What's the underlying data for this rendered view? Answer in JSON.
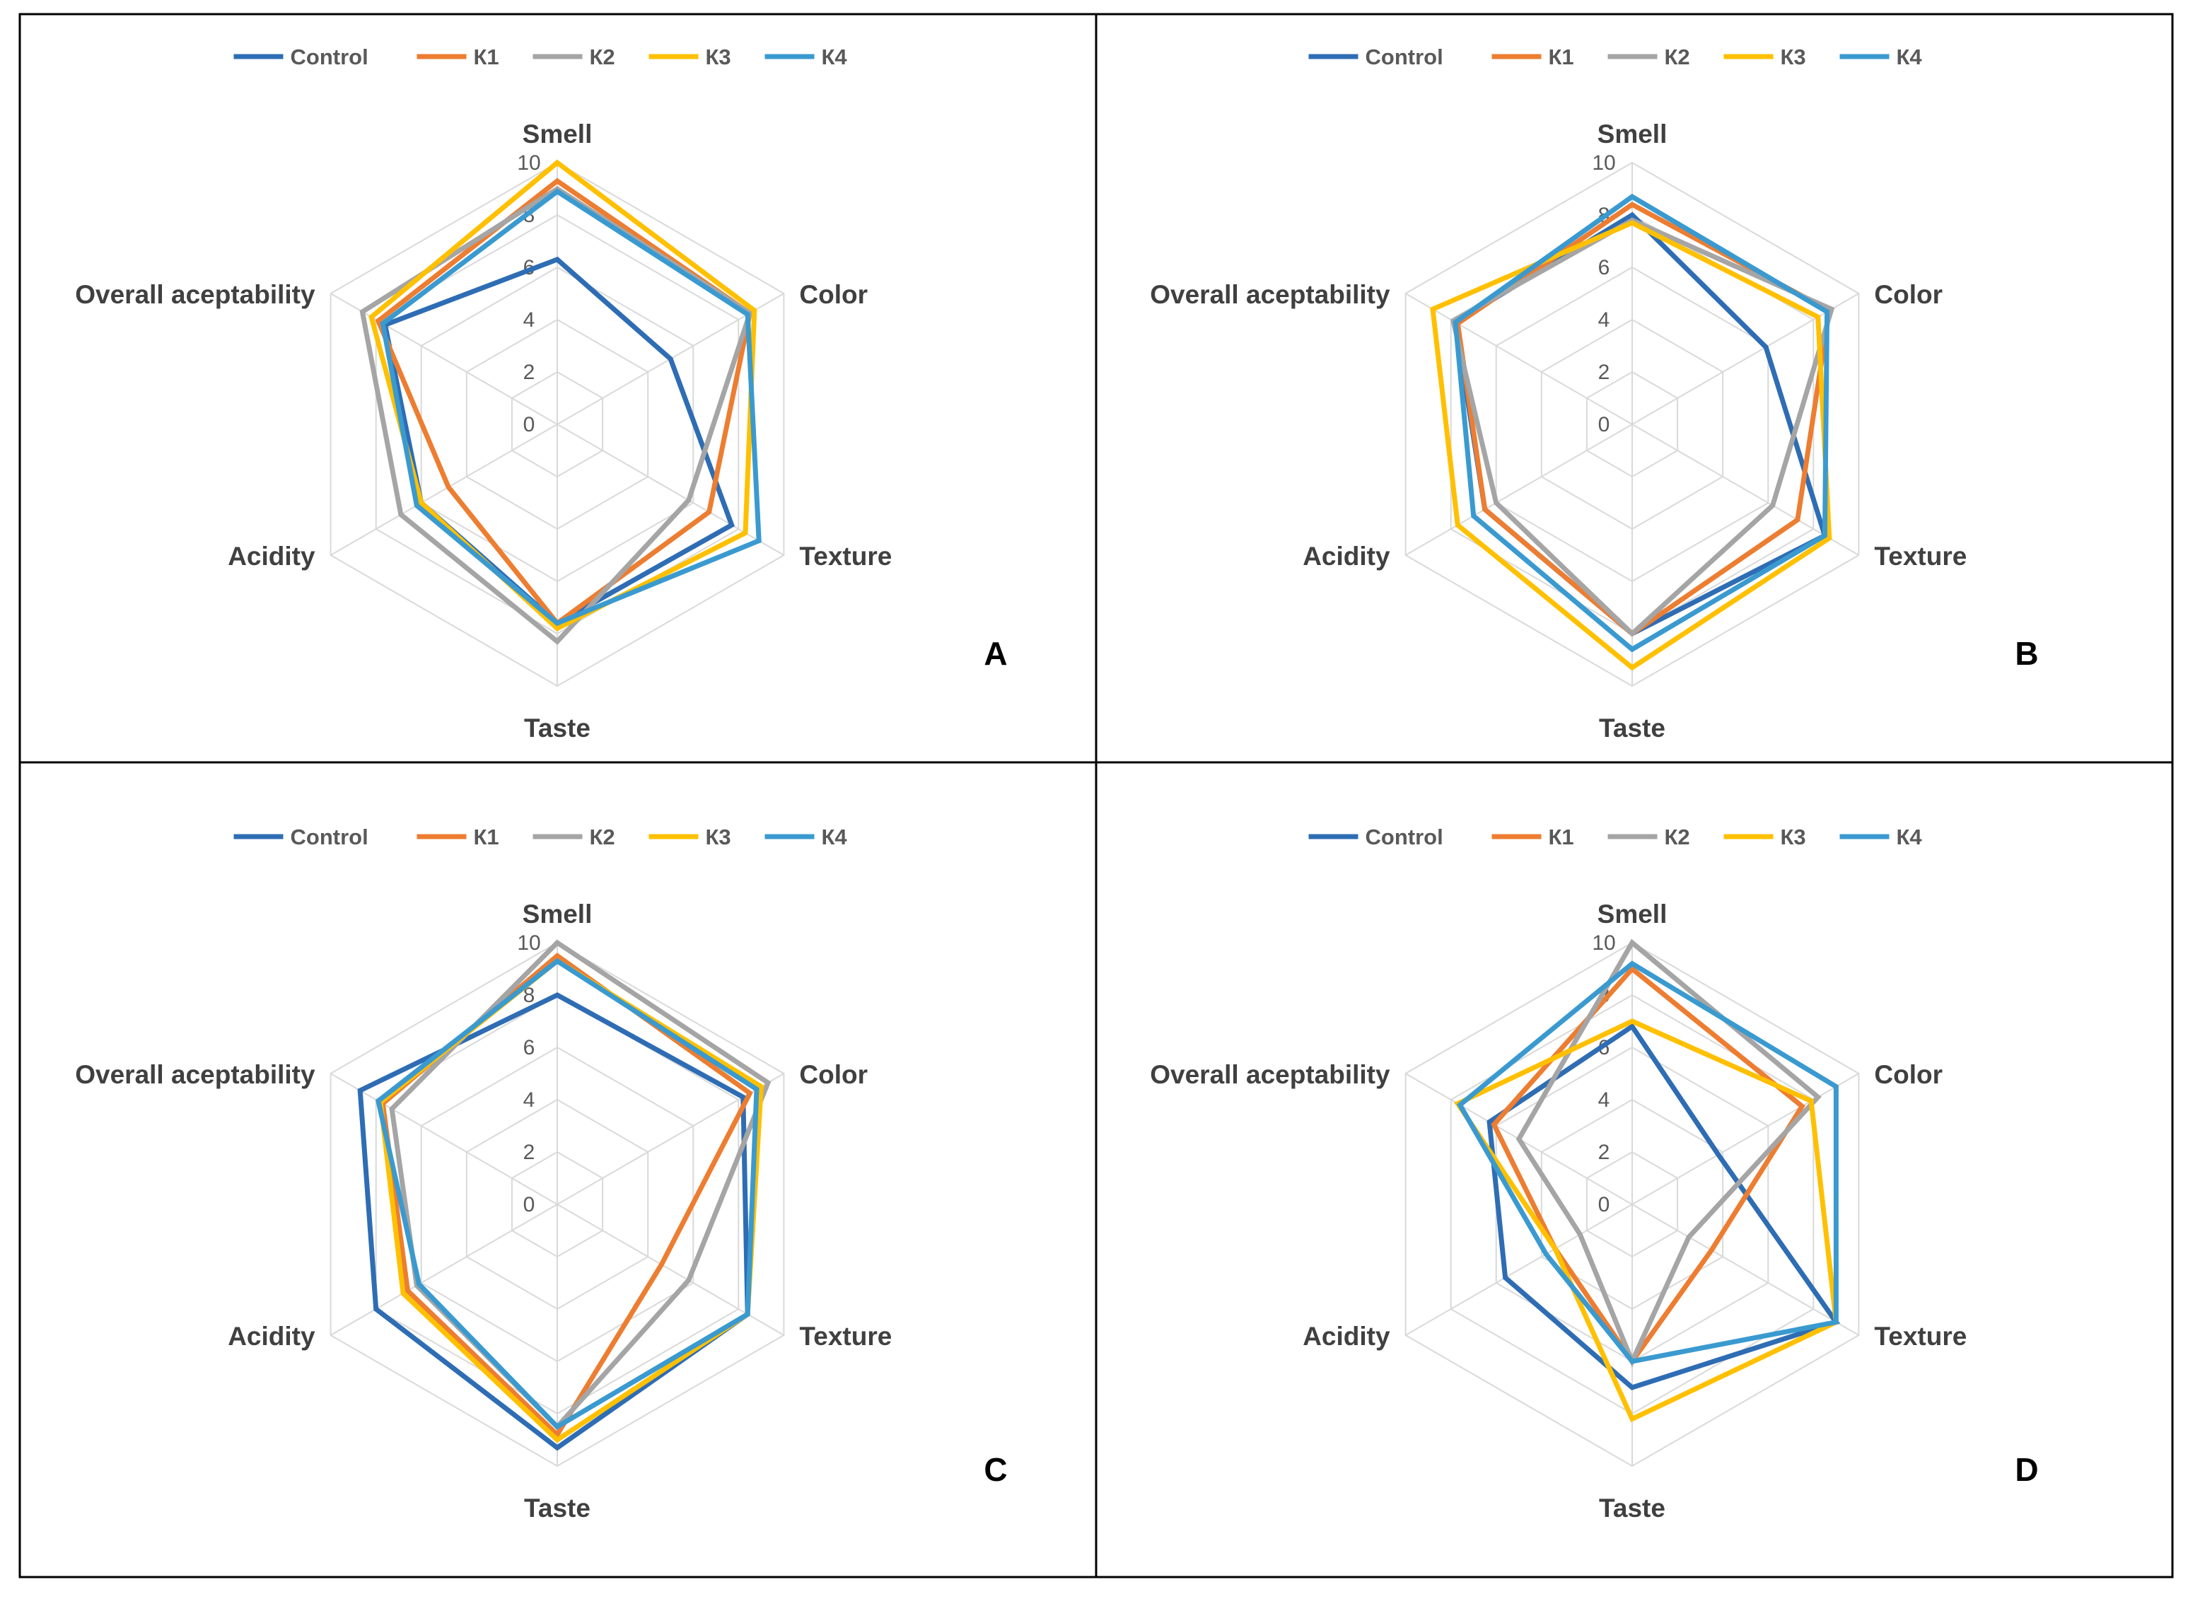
{
  "colors": {
    "Control": "#2E6DB4",
    "K1": "#ED7D31",
    "K2": "#A5A5A5",
    "K3": "#FFC000",
    "K4": "#3A9AD0",
    "grid": "#D9D9D9",
    "frame": "#000000",
    "label": "#404040",
    "tick": "#595959"
  },
  "chart_data": [
    {
      "type": "radar",
      "panel_letter": "A",
      "axes": [
        "Smell",
        "Color",
        "Texture",
        "Taste",
        "Acidity",
        "Overall aceptability"
      ],
      "range": [
        0,
        10
      ],
      "ticks": [
        "0",
        "2",
        "4",
        "6",
        "8",
        "10"
      ],
      "grid": true,
      "legend_position": "top",
      "series": [
        {
          "name": "Control",
          "values": [
            6.3,
            5.0,
            7.7,
            7.6,
            6.0,
            7.6
          ]
        },
        {
          "name": "К1",
          "values": [
            9.3,
            8.5,
            6.7,
            7.6,
            4.8,
            7.9
          ]
        },
        {
          "name": "К2",
          "values": [
            9.0,
            8.5,
            5.8,
            8.3,
            6.9,
            8.6
          ]
        },
        {
          "name": "К3",
          "values": [
            10.0,
            8.7,
            8.3,
            7.8,
            6.0,
            8.2
          ]
        },
        {
          "name": "К4",
          "values": [
            8.9,
            8.4,
            8.9,
            7.6,
            6.2,
            7.7
          ]
        }
      ]
    },
    {
      "type": "radar",
      "panel_letter": "B",
      "axes": [
        "Smell",
        "Color",
        "Texture",
        "Taste",
        "Acidity",
        "Overall aceptability"
      ],
      "range": [
        0,
        10
      ],
      "ticks": [
        "0",
        "2",
        "4",
        "6",
        "8",
        "10"
      ],
      "grid": true,
      "legend_position": "top",
      "series": [
        {
          "name": "Control",
          "values": [
            8.0,
            5.9,
            8.5,
            8.0,
            6.5,
            7.8
          ]
        },
        {
          "name": "К1",
          "values": [
            8.4,
            8.7,
            7.3,
            8.0,
            6.5,
            7.7
          ]
        },
        {
          "name": "К2",
          "values": [
            7.8,
            8.8,
            6.2,
            8.0,
            6.0,
            7.9
          ]
        },
        {
          "name": "К3",
          "values": [
            7.7,
            8.2,
            8.7,
            9.3,
            7.7,
            8.8
          ]
        },
        {
          "name": "К4",
          "values": [
            8.7,
            8.6,
            8.5,
            8.6,
            7.0,
            7.8
          ]
        }
      ]
    },
    {
      "type": "radar",
      "panel_letter": "C",
      "axes": [
        "Smell",
        "Color",
        "Texture",
        "Taste",
        "Acidity",
        "Overall aceptability"
      ],
      "range": [
        0,
        10
      ],
      "ticks": [
        "0",
        "2",
        "4",
        "6",
        "8",
        "10"
      ],
      "grid": true,
      "legend_position": "top",
      "series": [
        {
          "name": "Control",
          "values": [
            8.0,
            8.2,
            8.4,
            9.3,
            8.0,
            8.7
          ]
        },
        {
          "name": "К1",
          "values": [
            9.5,
            8.5,
            4.6,
            8.8,
            6.6,
            7.7
          ]
        },
        {
          "name": "К2",
          "values": [
            10.0,
            9.3,
            5.8,
            8.5,
            6.2,
            7.3
          ]
        },
        {
          "name": "К3",
          "values": [
            9.3,
            9.0,
            8.4,
            9.0,
            6.8,
            7.8
          ]
        },
        {
          "name": "К4",
          "values": [
            9.3,
            8.8,
            8.4,
            8.5,
            6.1,
            7.9
          ]
        }
      ]
    },
    {
      "type": "radar",
      "panel_letter": "D",
      "axes": [
        "Smell",
        "Color",
        "Texture",
        "Taste",
        "Acidity",
        "Overall aceptability"
      ],
      "range": [
        0,
        10
      ],
      "ticks": [
        "0",
        "2",
        "4",
        "6",
        "8",
        "10"
      ],
      "grid": true,
      "legend_position": "top",
      "series": [
        {
          "name": "Control",
          "values": [
            6.8,
            3.8,
            9.0,
            7.0,
            5.6,
            6.3
          ]
        },
        {
          "name": "К1",
          "values": [
            9.0,
            7.5,
            3.5,
            6.0,
            3.4,
            6.1
          ]
        },
        {
          "name": "К2",
          "values": [
            10.0,
            8.2,
            2.5,
            6.0,
            2.3,
            5.0
          ]
        },
        {
          "name": "К3",
          "values": [
            7.0,
            7.9,
            9.0,
            8.2,
            3.4,
            7.7
          ]
        },
        {
          "name": "К4",
          "values": [
            9.2,
            9.0,
            9.0,
            6.0,
            3.8,
            7.6
          ]
        }
      ]
    }
  ]
}
